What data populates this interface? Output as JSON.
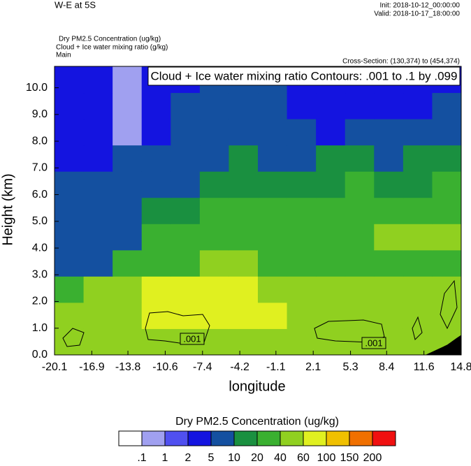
{
  "chart_data": {
    "type": "contour",
    "title": "W-E at 5S",
    "init": "Init: 2018-10-12_00:00:00",
    "valid": "Valid: 2018-10-17_18:00:00",
    "field_title": "Dry PM2.5 Concentration   (ug/kg)",
    "contour_title": "Cloud + Ice water mixing ratio   (g/kg)",
    "domain": "Main",
    "cross_section": "Cross-Section: (130,374) to (454,374)",
    "annotation": "Cloud + Ice water mixing ratio Contours: .001 to .1 by .099",
    "contour_labels": [
      ".001",
      ".001"
    ],
    "x_label": "longitude",
    "y_label": "Height (km)",
    "xlim": [
      -20.1,
      14.8
    ],
    "ylim": [
      0,
      10.8
    ],
    "xticks": [
      -20.1,
      -16.9,
      -13.8,
      -10.6,
      -7.4,
      -4.2,
      -1.1,
      2.1,
      5.3,
      8.4,
      11.6,
      14.8
    ],
    "yticks": [
      {
        "value": 0,
        "label": "0.0"
      },
      {
        "value": 1,
        "label": "1.0"
      },
      {
        "value": 2,
        "label": "2.0"
      },
      {
        "value": 3,
        "label": "3.0"
      },
      {
        "value": 4,
        "label": "4.0"
      },
      {
        "value": 5,
        "label": "5.0"
      },
      {
        "value": 6,
        "label": "6.0"
      },
      {
        "value": 7,
        "label": "7.0"
      },
      {
        "value": 8,
        "label": "8.0"
      },
      {
        "value": 9,
        "label": "9.0"
      },
      {
        "value": 10,
        "label": "10.0"
      }
    ],
    "field": [
      [
        50,
        50,
        50,
        50,
        50,
        50,
        50,
        50,
        50,
        50,
        50,
        50,
        50,
        50
      ],
      [
        45,
        45,
        45,
        70,
        70,
        80,
        70,
        70,
        45,
        45,
        45,
        45,
        50,
        45
      ],
      [
        30,
        45,
        45,
        65,
        70,
        70,
        65,
        45,
        45,
        45,
        45,
        45,
        45,
        45
      ],
      [
        7,
        7,
        25,
        30,
        30,
        45,
        45,
        30,
        30,
        30,
        25,
        30,
        30,
        30
      ],
      [
        7,
        7,
        7,
        25,
        25,
        25,
        25,
        25,
        25,
        25,
        25,
        45,
        45,
        45
      ],
      [
        7,
        7,
        7,
        15,
        15,
        25,
        25,
        25,
        25,
        25,
        25,
        30,
        25,
        25
      ],
      [
        6,
        6,
        6,
        6,
        8,
        15,
        15,
        15,
        15,
        15,
        25,
        15,
        15,
        25
      ],
      [
        4,
        4,
        6,
        6,
        6,
        6,
        12,
        6,
        6,
        15,
        12,
        6,
        15,
        12
      ],
      [
        3,
        3,
        0.5,
        4,
        6,
        6,
        6,
        6,
        6,
        4,
        6,
        6,
        6,
        6
      ],
      [
        3,
        2,
        0.5,
        3,
        6,
        6,
        6,
        6,
        3,
        3,
        3,
        3,
        3,
        6
      ],
      [
        3,
        3,
        0.5,
        3,
        3,
        6,
        6,
        6,
        3,
        3,
        3,
        3,
        3,
        3
      ]
    ],
    "colorbar": {
      "title": "Dry PM2.5 Concentration  (ug/kg)",
      "levels": [
        {
          "value": 0.1,
          "label": ".1"
        },
        1,
        2,
        5,
        10,
        20,
        40,
        60,
        100,
        150,
        200
      ],
      "colors": [
        "#ffffff",
        "#a0a0f0",
        "#5050f0",
        "#1414e0",
        "#1450a0",
        "#1a9040",
        "#3ab030",
        "#90d020",
        "#e0f020",
        "#f0c000",
        "#f07000",
        "#f01010"
      ]
    }
  }
}
